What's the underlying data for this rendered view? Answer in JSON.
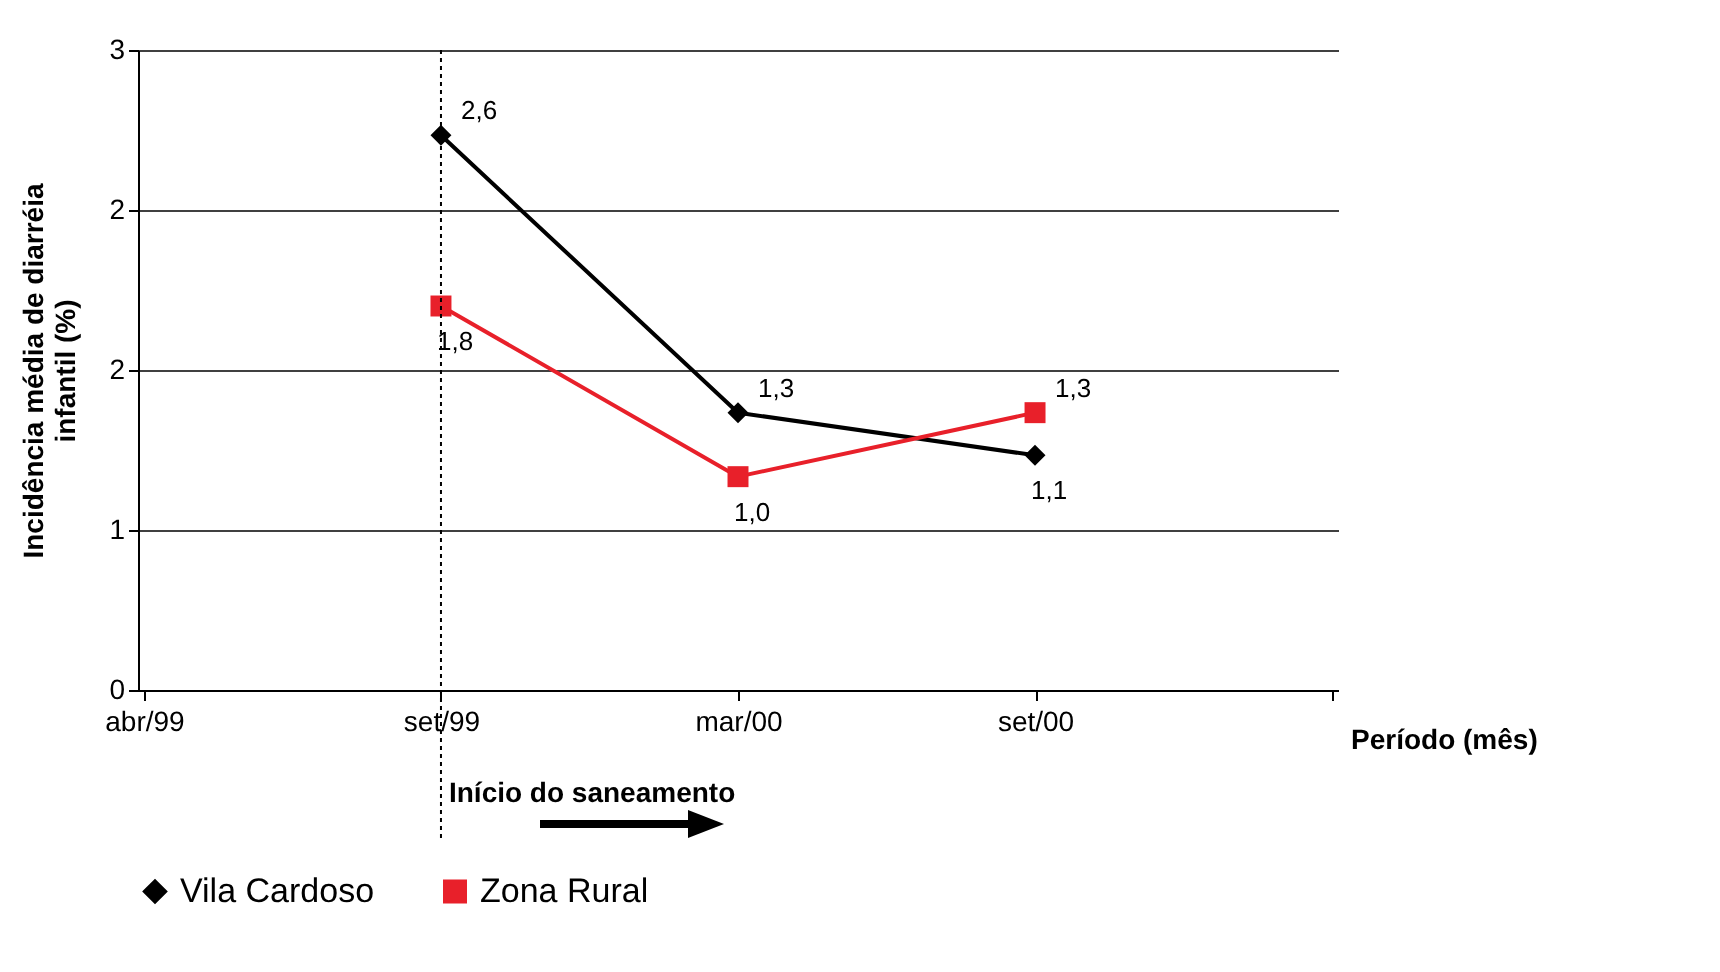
{
  "chart_data": {
    "type": "line",
    "ylabel": "Incidência média de diarréia\ninfantil (%)",
    "xlabel": "Período (mês)",
    "categories": [
      "abr/99",
      "set/99",
      "mar/00",
      "set/00",
      null
    ],
    "series": [
      {
        "name": "Vila Cardoso",
        "color": "#000000",
        "marker": "diamond",
        "values": [
          null,
          2.6,
          1.3,
          1.1,
          null
        ],
        "value_labels": [
          null,
          "2,6",
          "1,3",
          "1,1",
          null
        ]
      },
      {
        "name": "Zona Rural",
        "color": "#e8202a",
        "marker": "square",
        "values": [
          null,
          1.8,
          1.0,
          1.3,
          null
        ],
        "value_labels": [
          null,
          "1,8",
          "1,0",
          "1,3",
          null
        ]
      }
    ],
    "ylim": [
      0,
      3
    ],
    "yticks": [
      0,
      {
        "value": 0.75,
        "label": "1"
      },
      {
        "value": 1.5,
        "label": "2"
      },
      {
        "value": 2.25,
        "label": "2"
      },
      3
    ],
    "grid": "y",
    "legend": "bottom",
    "ref_lines": [
      {
        "axis": "x",
        "value": "set/99",
        "label": "Início do saneamento",
        "line_style": "dotted"
      }
    ]
  }
}
